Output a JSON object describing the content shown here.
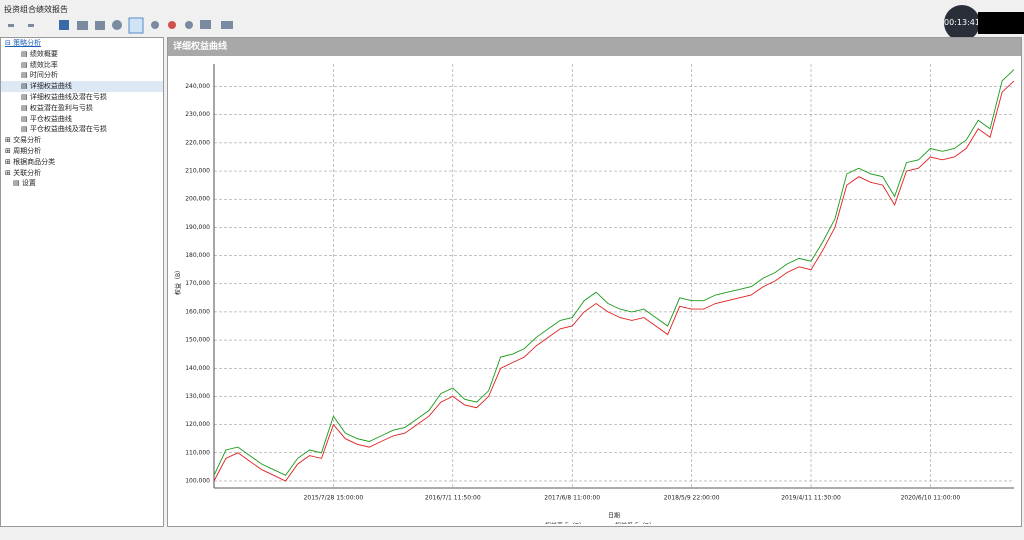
{
  "window": {
    "title": "投资组合绩效报告",
    "timer": "00:13:41"
  },
  "tree": {
    "items": [
      "策略分析",
      "绩效概要",
      "绩效比率",
      "时间分析",
      "详细权益曲线",
      "详细权益曲线及潜在亏损",
      "权益潜在盈利与亏损",
      "平仓权益曲线",
      "平仓权益曲线及潜在亏损",
      "交易分析",
      "周期分析",
      "根据商品分类",
      "关联分析",
      "设置"
    ]
  },
  "panel_title": "详细权益曲线",
  "chart_data": {
    "type": "line",
    "x_label": "日期",
    "y_label": "权益（B）",
    "xlim": [
      0,
      670
    ],
    "ylim": [
      97500,
      248000
    ],
    "xticks": [
      {
        "value": 100,
        "label": "2015/7/28 15:00:00"
      },
      {
        "value": 200,
        "label": "2016/7/1 11:50:00"
      },
      {
        "value": 300,
        "label": "2017/6/8 11:00:00"
      },
      {
        "value": 400,
        "label": "2018/5/9 22:00:00"
      },
      {
        "value": 500,
        "label": "2019/4/11 11:30:00"
      },
      {
        "value": 600,
        "label": "2020/6/10 11:00:00"
      }
    ],
    "yticks": [
      {
        "value": 100000,
        "label": "100,000"
      },
      {
        "value": 110000,
        "label": "110,000"
      },
      {
        "value": 120000,
        "label": "120,000"
      },
      {
        "value": 130000,
        "label": "130,000"
      },
      {
        "value": 140000,
        "label": "140,000"
      },
      {
        "value": 150000,
        "label": "150,000"
      },
      {
        "value": 160000,
        "label": "160,000"
      },
      {
        "value": 170000,
        "label": "170,000"
      },
      {
        "value": 180000,
        "label": "180,000"
      },
      {
        "value": 190000,
        "label": "190,000"
      },
      {
        "value": 200000,
        "label": "200,000"
      },
      {
        "value": 210000,
        "label": "210,000"
      },
      {
        "value": 220000,
        "label": "220,000"
      },
      {
        "value": 230000,
        "label": "230,000"
      },
      {
        "value": 240000,
        "label": "240,000"
      }
    ],
    "grid": true,
    "x": [
      0,
      10,
      20,
      30,
      40,
      50,
      60,
      70,
      80,
      90,
      100,
      110,
      120,
      130,
      140,
      150,
      160,
      170,
      180,
      190,
      200,
      210,
      220,
      230,
      240,
      250,
      260,
      270,
      280,
      290,
      300,
      310,
      320,
      330,
      340,
      350,
      360,
      370,
      380,
      390,
      400,
      410,
      420,
      430,
      440,
      450,
      460,
      470,
      480,
      490,
      500,
      510,
      520,
      530,
      540,
      550,
      560,
      570,
      580,
      590,
      600,
      610,
      620,
      630,
      640,
      650,
      660,
      670
    ],
    "series": [
      {
        "name": "权益高点（B）",
        "color": "#1a9a1a",
        "values": [
          102000,
          111000,
          112000,
          109000,
          106000,
          104000,
          102000,
          108000,
          111000,
          110000,
          123000,
          117000,
          115000,
          114000,
          116000,
          118000,
          119000,
          122000,
          125000,
          131000,
          133000,
          129000,
          128000,
          132000,
          144000,
          145000,
          147000,
          151000,
          154000,
          157000,
          158000,
          164000,
          167000,
          163000,
          161000,
          160000,
          161000,
          158000,
          155000,
          165000,
          164000,
          164000,
          166000,
          167000,
          168000,
          169000,
          172000,
          174000,
          177000,
          179000,
          178000,
          185000,
          193000,
          209000,
          211000,
          209000,
          208000,
          201000,
          213000,
          214000,
          218000,
          217000,
          218000,
          221000,
          228000,
          225000,
          242000,
          246000
        ]
      },
      {
        "name": "权益低点（B）",
        "color": "#e02020",
        "values": [
          100000,
          108000,
          110000,
          107000,
          104000,
          102000,
          100000,
          106000,
          109000,
          108000,
          120000,
          115000,
          113000,
          112000,
          114000,
          116000,
          117000,
          120000,
          123000,
          128000,
          130000,
          127000,
          126000,
          130000,
          140000,
          142000,
          144000,
          148000,
          151000,
          154000,
          155000,
          160000,
          163000,
          160000,
          158000,
          157000,
          158000,
          155000,
          152000,
          162000,
          161000,
          161000,
          163000,
          164000,
          165000,
          166000,
          169000,
          171000,
          174000,
          176000,
          175000,
          182000,
          190000,
          205000,
          208000,
          206000,
          205000,
          198000,
          210000,
          211000,
          215000,
          214000,
          215000,
          218000,
          225000,
          222000,
          238000,
          242000
        ]
      }
    ]
  }
}
